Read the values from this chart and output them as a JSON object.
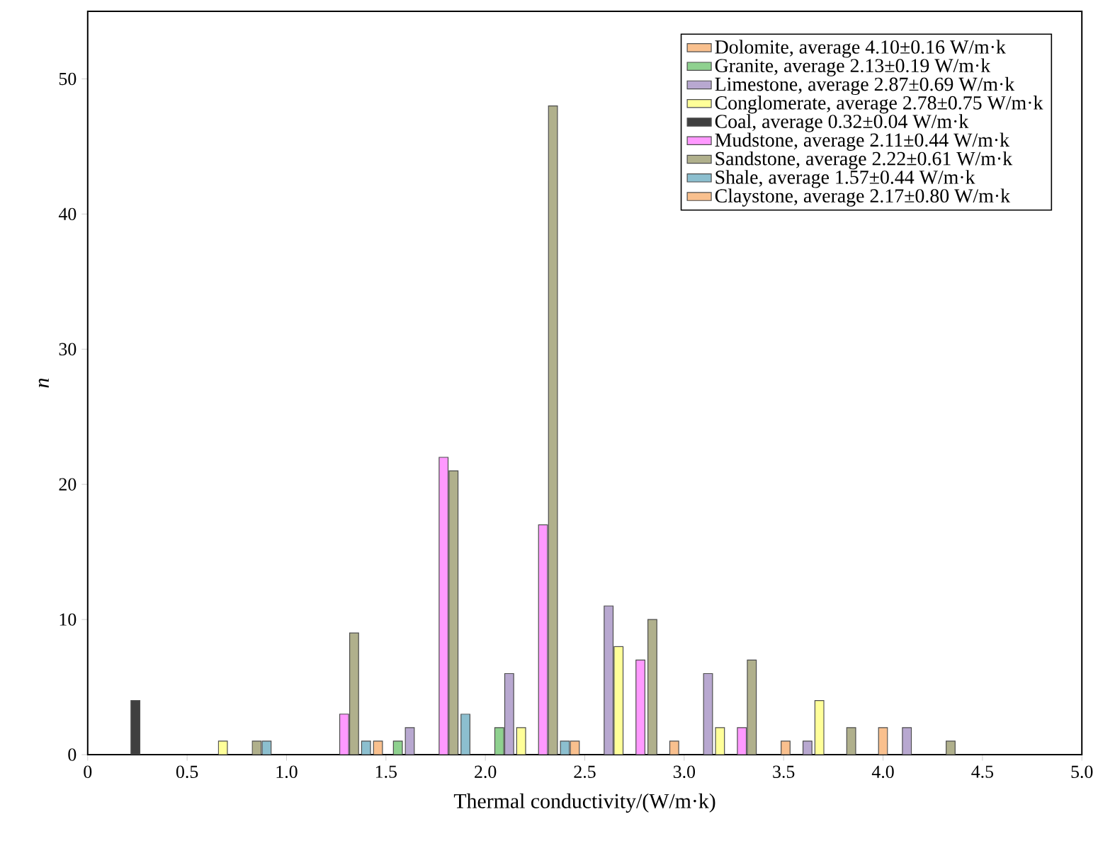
{
  "chart_data": {
    "type": "bar",
    "xlabel": "Thermal conductivity/(W/m·k)",
    "ylabel": "n",
    "xlim": [
      0,
      5
    ],
    "ylim": [
      0,
      55
    ],
    "xticks": [
      0,
      0.5,
      {
        "value": 1,
        "label": "1.0"
      },
      1.5,
      {
        "value": 2,
        "label": "2.0"
      },
      2.5,
      {
        "value": 3,
        "label": "3.0"
      },
      3.5,
      {
        "value": 4,
        "label": "4.0"
      },
      4.5,
      {
        "value": 5,
        "label": "5.0"
      }
    ],
    "yticks": [
      0,
      10,
      20,
      30,
      40,
      50
    ],
    "legend": "top right",
    "grid": false,
    "series": [
      {
        "name": "Dolomite, average 4.10±0.16 W/m·k",
        "color": "#f9c08e",
        "x": [
          4.0
        ],
        "values": [
          2
        ]
      },
      {
        "name": "Granite, average 2.13±0.19 W/m·k",
        "color": "#8fd18f",
        "x": [
          1.56,
          2.07
        ],
        "values": [
          1,
          2
        ]
      },
      {
        "name": "Limestone, average 2.87±0.69 W/m·k",
        "color": "#b8a8d0",
        "x": [
          1.62,
          2.12,
          2.62,
          3.12,
          3.62,
          4.12
        ],
        "values": [
          2,
          6,
          11,
          6,
          1,
          2
        ]
      },
      {
        "name": "Conglomerate, average 2.78±0.75 W/m·k",
        "color": "#ffff99",
        "x": [
          0.68,
          2.18,
          2.67,
          3.18,
          3.68
        ],
        "values": [
          1,
          2,
          8,
          2,
          4
        ]
      },
      {
        "name": "Coal, average 0.32±0.04 W/m·k",
        "color": "#3f3f3f",
        "x": [
          0.24
        ],
        "values": [
          4
        ]
      },
      {
        "name": "Mudstone, average 2.11±0.44 W/m·k",
        "color": "#ff99ff",
        "x": [
          1.29,
          1.79,
          2.29,
          2.78,
          3.29
        ],
        "values": [
          3,
          22,
          17,
          7,
          2
        ]
      },
      {
        "name": "Sandstone, average 2.22±0.61 W/m·k",
        "color": "#b0b08c",
        "x": [
          0.85,
          1.34,
          1.84,
          2.34,
          2.84,
          3.34,
          3.84,
          4.34
        ],
        "values": [
          1,
          9,
          21,
          48,
          10,
          7,
          2,
          1
        ]
      },
      {
        "name": "Shale, average 1.57±0.44 W/m·k",
        "color": "#8cbfcf",
        "x": [
          0.9,
          1.4,
          1.9,
          2.4
        ],
        "values": [
          1,
          1,
          3,
          1
        ]
      },
      {
        "name": "Claystone, average 2.17±0.80 W/m·k",
        "color": "#f9c08e",
        "x": [
          1.46,
          2.45,
          2.95,
          3.51
        ],
        "values": [
          1,
          1,
          1,
          1
        ]
      }
    ]
  }
}
